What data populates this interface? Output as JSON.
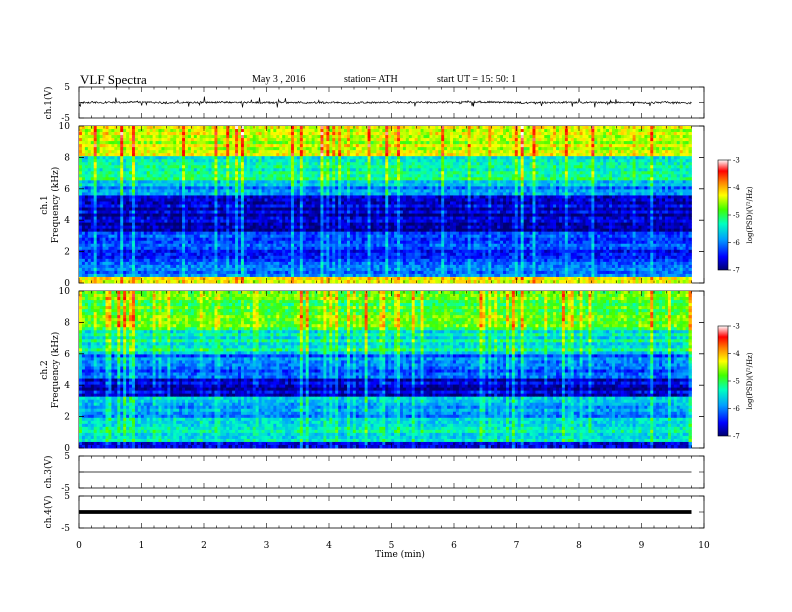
{
  "header": {
    "title": "VLF  Spectra",
    "date": "May 3   , 2016",
    "station": "station= ATH",
    "start": "start  UT  =    15: 50: 1"
  },
  "chart_data": [
    {
      "type": "line",
      "id": "ch1-waveform",
      "ylabel": "ch.1(V)",
      "ylim": [
        -5,
        5
      ],
      "yticks": [
        5,
        -5
      ],
      "xlim": [
        0,
        10
      ],
      "description_values": {
        "baseline": 0.0,
        "noise_amplitude": 0.6,
        "spike_max": 1.8
      },
      "color": "#000000"
    },
    {
      "type": "heatmap",
      "id": "ch1-spectrogram",
      "ylabel": "ch.1\nFrequency  (kHz)",
      "ylim": [
        0,
        10
      ],
      "yticks": [
        0,
        2,
        4,
        6,
        8,
        10
      ],
      "xlim": [
        0,
        9.8
      ],
      "colorbar": {
        "label": "log(PSD)(V²/Hz)",
        "range": [
          -7,
          -3
        ],
        "ticks": [
          -3,
          -4,
          -5,
          -6,
          -7
        ],
        "colors": [
          "#000070",
          "#0000ff",
          "#00a0ff",
          "#00ffc0",
          "#40ff00",
          "#ffff00",
          "#ff8000",
          "#ff0000",
          "#ffffff"
        ]
      },
      "band_levels": [
        {
          "f": [
            0,
            0.3
          ],
          "level": -4.2
        },
        {
          "f": [
            0.3,
            1.5
          ],
          "level": -6.2
        },
        {
          "f": [
            1.5,
            3.2
          ],
          "level": -6.4
        },
        {
          "f": [
            3.2,
            5.5
          ],
          "level": -6.8
        },
        {
          "f": [
            5.5,
            6.5
          ],
          "level": -6.0
        },
        {
          "f": [
            6.5,
            8.0
          ],
          "level": -5.4
        },
        {
          "f": [
            8.0,
            10
          ],
          "level": -4.6
        }
      ]
    },
    {
      "type": "heatmap",
      "id": "ch2-spectrogram",
      "ylabel": "ch.2\nFrequency  (kHz)",
      "ylim": [
        0,
        10
      ],
      "yticks": [
        0,
        2,
        4,
        6,
        8,
        10
      ],
      "xlim": [
        0,
        9.8
      ],
      "colorbar": {
        "label": "log(PSD)(V²/Hz)",
        "range": [
          -7,
          -3
        ],
        "ticks": [
          -3,
          -4,
          -5,
          -6,
          -7
        ],
        "colors": [
          "#000070",
          "#0000ff",
          "#00a0ff",
          "#00ffc0",
          "#40ff00",
          "#ffff00",
          "#ff8000",
          "#ff0000",
          "#ffffff"
        ]
      },
      "band_levels": [
        {
          "f": [
            0,
            0.3
          ],
          "level": -6.6
        },
        {
          "f": [
            0.3,
            2.0
          ],
          "level": -5.6
        },
        {
          "f": [
            2.0,
            3.2
          ],
          "level": -5.9
        },
        {
          "f": [
            3.2,
            4.5
          ],
          "level": -6.8
        },
        {
          "f": [
            4.5,
            6.0
          ],
          "level": -6.2
        },
        {
          "f": [
            6.0,
            7.5
          ],
          "level": -5.5
        },
        {
          "f": [
            7.5,
            10
          ],
          "level": -5.0
        }
      ]
    },
    {
      "type": "line",
      "id": "ch3-waveform",
      "ylabel": "ch.3(V)",
      "ylim": [
        -5,
        5
      ],
      "yticks": [
        5,
        -5
      ],
      "xlim": [
        0,
        10
      ],
      "description_values": {
        "baseline": 0.0
      }
    },
    {
      "type": "line",
      "id": "ch4-waveform",
      "ylabel": "ch.4(V)",
      "ylim": [
        -5,
        5
      ],
      "yticks": [
        5,
        -5
      ],
      "xlim": [
        0,
        10
      ],
      "description_values": {
        "baseline": 0.0,
        "thickness_volts": 1.0
      }
    }
  ],
  "x_axis": {
    "label": "Time  (min)",
    "ticks": [
      0,
      1,
      2,
      3,
      4,
      5,
      6,
      7,
      8,
      9,
      10
    ]
  }
}
